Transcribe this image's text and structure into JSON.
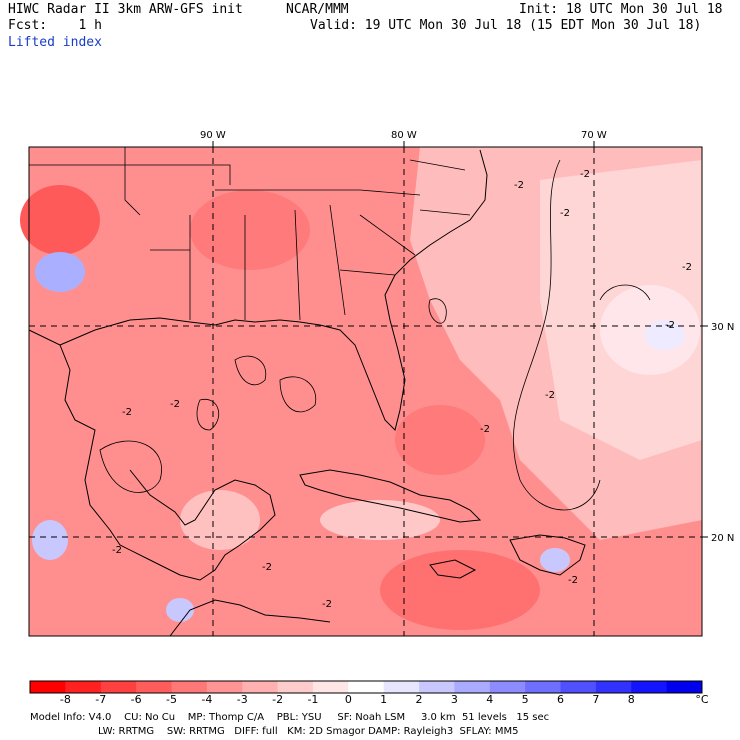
{
  "header": {
    "title_left": "HIWC Radar II 3km ARW-GFS init",
    "title_center": "NCAR/MMM",
    "init": "Init: 18 UTC Mon 30 Jul 18",
    "fcst": "Fcst:    1 h",
    "valid": "Valid: 19 UTC Mon 30 Jul 18 (15 EDT Mon 30 Jul 18)",
    "field": "Lifted index"
  },
  "map": {
    "lon_labels": [
      "90 W",
      "80 W",
      "70 W"
    ],
    "lat_labels": [
      "30 N",
      "20 N"
    ],
    "contour_labels": [
      "-2",
      "-2",
      "-2",
      "-2",
      "-2",
      "-2",
      "-2",
      "-2",
      "-2",
      "-2",
      "-2",
      "-2",
      "-2"
    ]
  },
  "colorbar": {
    "unit": "°C",
    "levels": [
      "-8",
      "-7",
      "-6",
      "-5",
      "-4",
      "-3",
      "-2",
      "-1",
      "0",
      "1",
      "2",
      "3",
      "4",
      "5",
      "6",
      "7",
      "8"
    ],
    "colors": [
      "#ff0000",
      "#ff2020",
      "#ff4040",
      "#ff5c5c",
      "#ff7878",
      "#ff9494",
      "#ffb0b0",
      "#ffcccc",
      "#ffe6e6",
      "#ffffff",
      "#e6e6ff",
      "#c8c8ff",
      "#aaaaff",
      "#8c8cff",
      "#6e6eff",
      "#5050ff",
      "#3232ff",
      "#1414ff",
      "#0000ee"
    ]
  },
  "footer": {
    "line1": "Model Info: V4.0    CU: No Cu    MP: Thomp C/A    PBL: YSU     SF: Noah LSM     3.0 km  51 levels   15 sec",
    "line2": "LW: RRTMG    SW: RRTMG   DIFF: full   KM: 2D Smagor DAMP: Rayleigh3  SFLAY: MM5"
  }
}
